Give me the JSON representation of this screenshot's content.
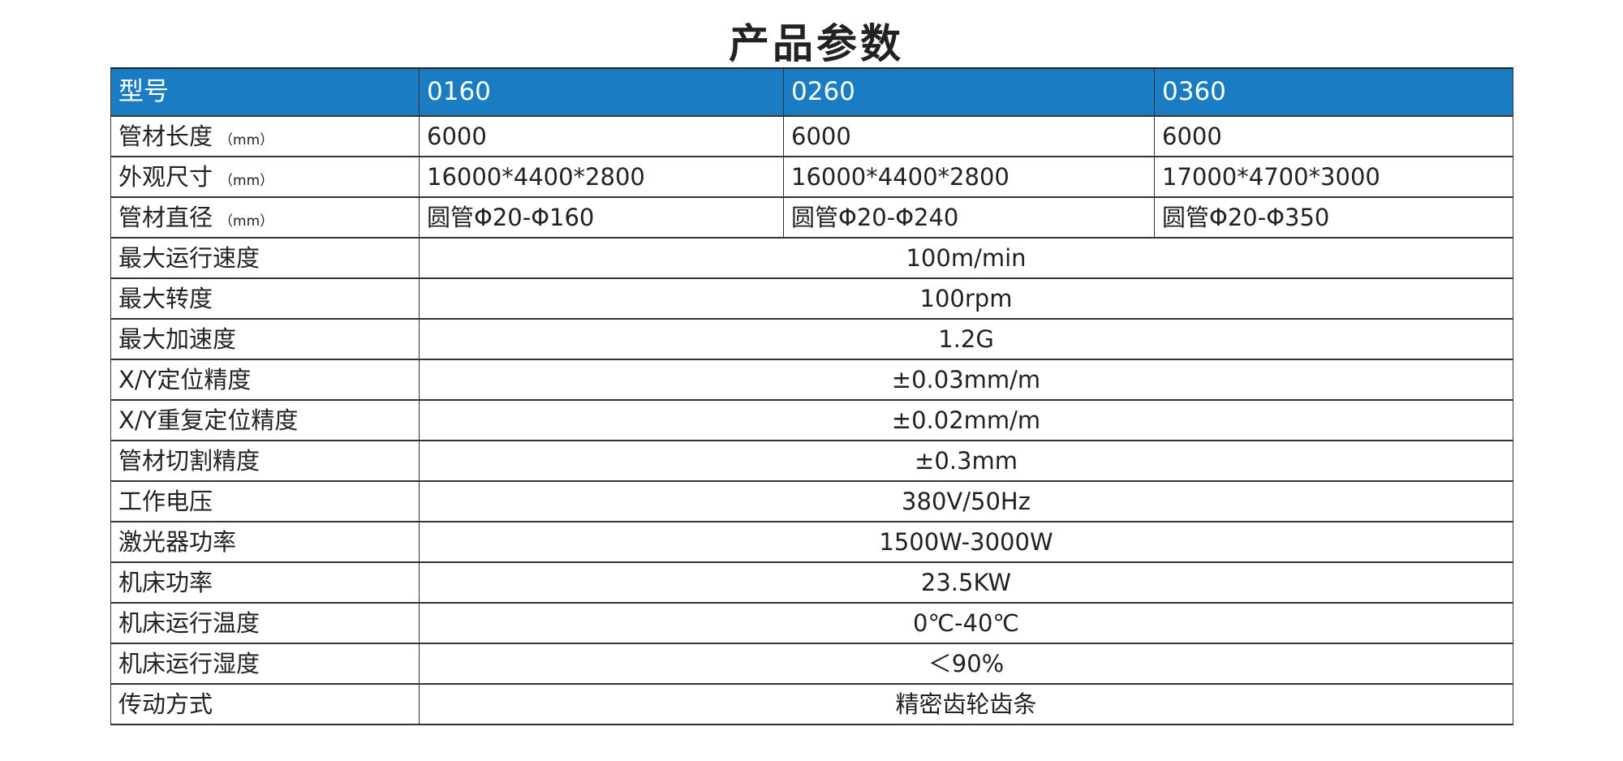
{
  "title": "产品参数",
  "colors": {
    "header_bg": "#1a7dc4",
    "header_text": "#ffffff",
    "border": "#333333"
  },
  "header": {
    "label": "型号",
    "models": [
      "0160",
      "0260",
      "0360"
    ]
  },
  "per_model_rows": [
    {
      "label": "管材长度",
      "unit": "（mm）",
      "values": [
        "6000",
        "6000",
        "6000"
      ]
    },
    {
      "label": "外观尺寸",
      "unit": "（mm）",
      "values": [
        "16000*4400*2800",
        "16000*4400*2800",
        "17000*4700*3000"
      ]
    },
    {
      "label": "管材直径",
      "unit": "（mm）",
      "values": [
        "圆管Φ20-Φ160",
        "圆管Φ20-Φ240",
        "圆管Φ20-Φ350"
      ]
    }
  ],
  "shared_rows": [
    {
      "label": "最大运行速度",
      "value": "100m/min"
    },
    {
      "label": "最大转度",
      "value": "100rpm"
    },
    {
      "label": "最大加速度",
      "value": "1.2G"
    },
    {
      "label": "X/Y定位精度",
      "value": "±0.03mm/m"
    },
    {
      "label": "X/Y重复定位精度",
      "value": "±0.02mm/m"
    },
    {
      "label": "管材切割精度",
      "value": "±0.3mm"
    },
    {
      "label": "工作电压",
      "value": "380V/50Hz"
    },
    {
      "label": "激光器功率",
      "value": "1500W-3000W"
    },
    {
      "label": "机床功率",
      "value": "23.5KW"
    },
    {
      "label": "机床运行温度",
      "value": "0℃-40℃"
    },
    {
      "label": "机床运行湿度",
      "value": "＜90%"
    },
    {
      "label": "传动方式",
      "value": "精密齿轮齿条"
    }
  ]
}
